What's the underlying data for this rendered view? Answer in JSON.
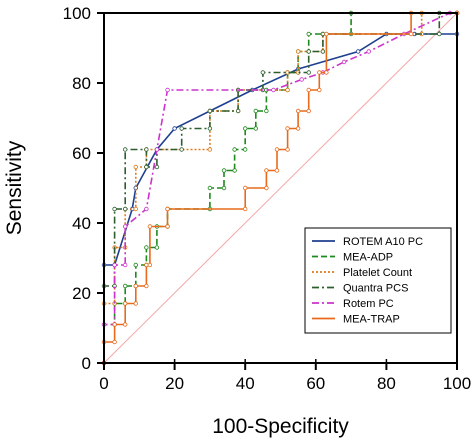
{
  "chart_data": {
    "type": "line",
    "xlabel": "100-Specificity",
    "ylabel": "Sensitivity",
    "xlim": [
      0,
      100
    ],
    "ylim": [
      0,
      100
    ],
    "xticks": [
      "0",
      "20",
      "40",
      "60",
      "80",
      "100"
    ],
    "yticks": [
      "0",
      "20",
      "40",
      "60",
      "80",
      "100"
    ],
    "grid": false,
    "legend_position": "bottom-right",
    "reference_line": {
      "from": [
        0,
        0
      ],
      "to": [
        100,
        100
      ],
      "color": "#f4a6a6"
    },
    "series": [
      {
        "name": "ROTEM A10 PC",
        "color": "#1f3f8f",
        "style": "solid",
        "points": [
          [
            0,
            0
          ],
          [
            0,
            28
          ],
          [
            3,
            28
          ],
          [
            8,
            44
          ],
          [
            9,
            50
          ],
          [
            15,
            61
          ],
          [
            20,
            67
          ],
          [
            30,
            72
          ],
          [
            42,
            78
          ],
          [
            55,
            84
          ],
          [
            72,
            89
          ],
          [
            80,
            94
          ],
          [
            88,
            94
          ],
          [
            100,
            94
          ],
          [
            100,
            100
          ]
        ]
      },
      {
        "name": "MEA-ADP",
        "color": "#1c8a1c",
        "style": "dash",
        "points": [
          [
            0,
            0
          ],
          [
            0,
            11
          ],
          [
            3,
            11
          ],
          [
            3,
            17
          ],
          [
            6,
            17
          ],
          [
            6,
            22
          ],
          [
            9,
            22
          ],
          [
            9,
            28
          ],
          [
            12,
            28
          ],
          [
            12,
            33
          ],
          [
            15,
            33
          ],
          [
            15,
            39
          ],
          [
            18,
            39
          ],
          [
            18,
            44
          ],
          [
            30,
            44
          ],
          [
            30,
            50
          ],
          [
            34,
            50
          ],
          [
            34,
            55
          ],
          [
            37,
            55
          ],
          [
            37,
            61
          ],
          [
            40,
            61
          ],
          [
            40,
            67
          ],
          [
            43,
            67
          ],
          [
            43,
            72
          ],
          [
            46,
            72
          ],
          [
            46,
            78
          ],
          [
            52,
            78
          ],
          [
            52,
            83
          ],
          [
            55,
            83
          ],
          [
            55,
            89
          ],
          [
            58,
            89
          ],
          [
            58,
            94
          ],
          [
            70,
            94
          ],
          [
            70,
            100
          ],
          [
            100,
            100
          ]
        ]
      },
      {
        "name": "Platelet Count",
        "color": "#e07b1c",
        "style": "dot",
        "points": [
          [
            0,
            0
          ],
          [
            0,
            17
          ],
          [
            3,
            17
          ],
          [
            3,
            33
          ],
          [
            6,
            33
          ],
          [
            6,
            44
          ],
          [
            9,
            44
          ],
          [
            9,
            56
          ],
          [
            12,
            56
          ],
          [
            12,
            61
          ],
          [
            30,
            61
          ],
          [
            30,
            72
          ],
          [
            38,
            72
          ],
          [
            38,
            78
          ],
          [
            52,
            78
          ],
          [
            52,
            83
          ],
          [
            55,
            83
          ],
          [
            55,
            89
          ],
          [
            62,
            89
          ],
          [
            62,
            94
          ],
          [
            90,
            94
          ],
          [
            90,
            100
          ],
          [
            100,
            100
          ]
        ]
      },
      {
        "name": "Quantra PCS",
        "color": "#2c5f2c",
        "style": "dashdot",
        "points": [
          [
            0,
            0
          ],
          [
            0,
            22
          ],
          [
            3,
            22
          ],
          [
            3,
            44
          ],
          [
            6,
            44
          ],
          [
            6,
            61
          ],
          [
            12,
            61
          ],
          [
            12,
            56
          ],
          [
            15,
            56
          ],
          [
            15,
            61
          ],
          [
            22,
            61
          ],
          [
            22,
            67
          ],
          [
            30,
            67
          ],
          [
            30,
            72
          ],
          [
            38,
            72
          ],
          [
            38,
            78
          ],
          [
            45,
            78
          ],
          [
            45,
            83
          ],
          [
            58,
            83
          ],
          [
            58,
            89
          ],
          [
            62,
            89
          ],
          [
            62,
            94
          ],
          [
            95,
            94
          ],
          [
            95,
            100
          ],
          [
            100,
            100
          ]
        ]
      },
      {
        "name": "Rotem PC",
        "color": "#cc33cc",
        "style": "dashdot",
        "points": [
          [
            0,
            0
          ],
          [
            0,
            11
          ],
          [
            3,
            11
          ],
          [
            3,
            28
          ],
          [
            6,
            28
          ],
          [
            6,
            39
          ],
          [
            12,
            44
          ],
          [
            15,
            61
          ],
          [
            18,
            78
          ],
          [
            48,
            78
          ],
          [
            56,
            81
          ],
          [
            62,
            83
          ],
          [
            68,
            86
          ],
          [
            75,
            89
          ],
          [
            85,
            94
          ],
          [
            98,
            100
          ],
          [
            100,
            100
          ]
        ]
      },
      {
        "name": "MEA-TRAP",
        "color": "#e86a1a",
        "style": "solid",
        "points": [
          [
            0,
            0
          ],
          [
            0,
            6
          ],
          [
            3,
            6
          ],
          [
            3,
            11
          ],
          [
            6,
            11
          ],
          [
            6,
            17
          ],
          [
            9,
            17
          ],
          [
            9,
            22
          ],
          [
            12,
            22
          ],
          [
            12,
            28
          ],
          [
            13,
            28
          ],
          [
            13,
            39
          ],
          [
            18,
            39
          ],
          [
            18,
            44
          ],
          [
            40,
            44
          ],
          [
            40,
            50
          ],
          [
            46,
            50
          ],
          [
            46,
            55
          ],
          [
            49,
            55
          ],
          [
            49,
            61
          ],
          [
            52,
            61
          ],
          [
            52,
            67
          ],
          [
            55,
            67
          ],
          [
            55,
            72
          ],
          [
            58,
            72
          ],
          [
            58,
            78
          ],
          [
            61,
            78
          ],
          [
            61,
            83
          ],
          [
            63,
            83
          ],
          [
            63,
            94
          ],
          [
            87,
            94
          ],
          [
            87,
            100
          ],
          [
            100,
            100
          ]
        ]
      }
    ]
  }
}
